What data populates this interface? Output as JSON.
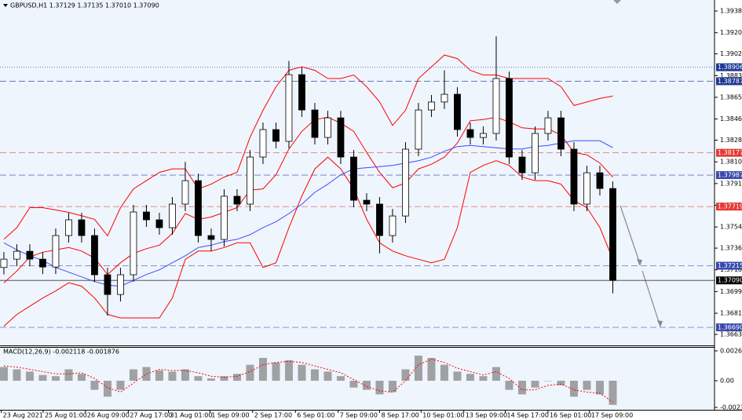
{
  "chart_data": [
    {
      "type": "candlestick",
      "title": "GBPUSD,H1  1.37129 1.37135 1.37010 1.37090",
      "xlim": [
        -0.3,
        54.85
      ],
      "ylim": [
        1.36536,
        1.39479
      ],
      "xticks": [
        {
          "value": -0.2,
          "label": "23 Aug 2021"
        },
        {
          "value": 3.03,
          "label": "25 Aug 01:00"
        },
        {
          "value": 6.3,
          "label": "26 Aug 09:00"
        },
        {
          "value": 9.6,
          "label": "27 Aug 17:00"
        },
        {
          "value": 12.7,
          "label": "31 Aug 01:00"
        },
        {
          "value": 15.9,
          "label": "1 Sep 09:00"
        },
        {
          "value": 19.2,
          "label": "2 Sep 17:00"
        },
        {
          "value": 22.5,
          "label": "6 Sep 01:00"
        },
        {
          "value": 25.8,
          "label": "7 Sep 09:00"
        },
        {
          "value": 29.0,
          "label": "8 Sep 17:00"
        },
        {
          "value": 32.2,
          "label": "10 Sep 01:00"
        },
        {
          "value": 35.5,
          "label": "13 Sep 09:00"
        },
        {
          "value": 38.7,
          "label": "14 Sep 17:00"
        },
        {
          "value": 42.0,
          "label": "16 Sep 01:00"
        },
        {
          "value": 45.2,
          "label": "17 Sep 09:00"
        }
      ],
      "yticks": [
        {
          "value": 1.39385,
          "label": "1.39385"
        },
        {
          "value": 1.392,
          "label": "1.39200"
        },
        {
          "value": 1.3902,
          "label": "1.39020"
        },
        {
          "value": 1.38835,
          "label": "1.38835"
        },
        {
          "value": 1.3865,
          "label": "1.38650"
        },
        {
          "value": 1.38465,
          "label": "1.38465"
        },
        {
          "value": 1.38285,
          "label": "1.38285"
        },
        {
          "value": 1.381,
          "label": "1.38100"
        },
        {
          "value": 1.37915,
          "label": "1.37915"
        },
        {
          "value": 1.3773,
          "label": "1.37730"
        },
        {
          "value": 1.37545,
          "label": "1.37545"
        },
        {
          "value": 1.37365,
          "label": "1.37365"
        },
        {
          "value": 1.3718,
          "label": "1.37180"
        },
        {
          "value": 1.36995,
          "label": "1.36995"
        },
        {
          "value": 1.3681,
          "label": "1.36810"
        },
        {
          "value": 1.3663,
          "label": "1.36630"
        }
      ],
      "open": [
        1.372,
        1.37271,
        1.37338,
        1.37271,
        1.37204,
        1.37472,
        1.37606,
        1.37472,
        1.37138,
        1.3697,
        1.37138,
        1.37673,
        1.37606,
        1.37539,
        1.3774,
        1.3794,
        1.37472,
        1.37439,
        1.37807,
        1.3774,
        1.38141,
        1.38375,
        1.38275,
        1.38843,
        1.38542,
        1.38308,
        1.38475,
        1.38141,
        1.37773,
        1.3774,
        1.37472,
        1.37639,
        1.38208,
        1.38542,
        1.3861,
        1.38676,
        1.38375,
        1.38308,
        1.38342,
        1.3881,
        1.38141,
        1.38007,
        1.38342,
        1.38475,
        1.38208,
        1.3774,
        1.38007,
        1.37873
      ],
      "high": [
        1.37331,
        1.37398,
        1.37398,
        1.37331,
        1.37532,
        1.37666,
        1.37666,
        1.37532,
        1.37198,
        1.37198,
        1.37733,
        1.37733,
        1.37666,
        1.378,
        1.381,
        1.38,
        1.37532,
        1.37867,
        1.37867,
        1.38201,
        1.38435,
        1.38435,
        1.3896,
        1.38903,
        1.38602,
        1.38535,
        1.38535,
        1.38201,
        1.37833,
        1.378,
        1.37699,
        1.38268,
        1.38602,
        1.3867,
        1.3888,
        1.38736,
        1.38435,
        1.38402,
        1.3917,
        1.3887,
        1.38201,
        1.38402,
        1.38535,
        1.38535,
        1.38268,
        1.38067,
        1.38067,
        1.37933
      ],
      "low": [
        1.3714,
        1.37211,
        1.37211,
        1.37144,
        1.37144,
        1.37412,
        1.37412,
        1.37078,
        1.3679,
        1.3691,
        1.37078,
        1.37546,
        1.37479,
        1.37479,
        1.3768,
        1.37412,
        1.3734,
        1.37379,
        1.3768,
        1.3768,
        1.38081,
        1.38215,
        1.38215,
        1.38482,
        1.38248,
        1.38248,
        1.38081,
        1.37713,
        1.3768,
        1.3732,
        1.37412,
        1.37579,
        1.38148,
        1.38482,
        1.3855,
        1.38315,
        1.38248,
        1.38248,
        1.38282,
        1.38081,
        1.37947,
        1.37947,
        1.38282,
        1.38148,
        1.3768,
        1.3768,
        1.37813,
        1.3698
      ],
      "close": [
        1.37271,
        1.37338,
        1.37271,
        1.37204,
        1.37472,
        1.37606,
        1.37472,
        1.37138,
        1.3697,
        1.37138,
        1.37673,
        1.37606,
        1.37539,
        1.3774,
        1.3794,
        1.37472,
        1.37439,
        1.37807,
        1.3774,
        1.38141,
        1.38375,
        1.38275,
        1.38843,
        1.38542,
        1.38308,
        1.38475,
        1.38141,
        1.37773,
        1.3774,
        1.37472,
        1.37639,
        1.38208,
        1.38542,
        1.3861,
        1.38676,
        1.38375,
        1.38308,
        1.38342,
        1.3881,
        1.38141,
        1.38007,
        1.38342,
        1.38475,
        1.38208,
        1.3774,
        1.38007,
        1.37873,
        1.3709
      ],
      "series": [
        {
          "color": "#ff0000",
          "values": [
            1.3744,
            1.3754,
            1.3771,
            1.3771,
            1.3769,
            1.3767,
            1.3764,
            1.3761,
            1.3747,
            1.3771,
            1.3787,
            1.3794,
            1.3801,
            1.3804,
            1.3804,
            1.3787,
            1.3791,
            1.3797,
            1.3801,
            1.3831,
            1.3854,
            1.3874,
            1.3888,
            1.3891,
            1.3888,
            1.3881,
            1.3881,
            1.3884,
            1.3874,
            1.3861,
            1.3841,
            1.3854,
            1.3881,
            1.3891,
            1.3901,
            1.3898,
            1.3888,
            1.3884,
            1.3884,
            1.3881,
            1.3881,
            1.3881,
            1.3881,
            1.3874,
            1.3858,
            1.3861,
            1.3864,
            1.3866
          ]
        },
        {
          "color": "#ff0000",
          "values": [
            1.3707,
            1.3717,
            1.3729,
            1.3733,
            1.3735,
            1.3737,
            1.3734,
            1.3728,
            1.3714,
            1.3724,
            1.3732,
            1.3736,
            1.3739,
            1.3749,
            1.3766,
            1.3761,
            1.3763,
            1.3767,
            1.3771,
            1.3786,
            1.3787,
            1.3799,
            1.3821,
            1.3836,
            1.3846,
            1.3848,
            1.3843,
            1.3836,
            1.3818,
            1.3801,
            1.3788,
            1.3792,
            1.3804,
            1.3808,
            1.3814,
            1.3826,
            1.3845,
            1.3846,
            1.3848,
            1.3844,
            1.3839,
            1.3838,
            1.3838,
            1.3833,
            1.3818,
            1.3816,
            1.3809,
            1.3797
          ]
        },
        {
          "color": "#ff0000",
          "values": [
            1.367,
            1.368,
            1.3687,
            1.3694,
            1.37,
            1.3707,
            1.3704,
            1.3694,
            1.368,
            1.3677,
            1.3677,
            1.3677,
            1.3677,
            1.3694,
            1.3727,
            1.3734,
            1.3734,
            1.3737,
            1.3741,
            1.3741,
            1.372,
            1.3724,
            1.3754,
            1.3781,
            1.3804,
            1.3814,
            1.3804,
            1.3787,
            1.3761,
            1.3741,
            1.3734,
            1.373,
            1.3727,
            1.3724,
            1.3727,
            1.3754,
            1.3801,
            1.3807,
            1.3811,
            1.3807,
            1.3797,
            1.3794,
            1.3794,
            1.3791,
            1.3777,
            1.3771,
            1.3754,
            1.3727
          ]
        },
        {
          "color": "#3b4cff",
          "values": [
            1.3741,
            1.3735,
            1.373,
            1.3726,
            1.372,
            1.3716,
            1.3712,
            1.3708,
            1.3705,
            1.3704,
            1.3709,
            1.3714,
            1.3718,
            1.3724,
            1.373,
            1.3737,
            1.3739,
            1.3742,
            1.3744,
            1.3748,
            1.3754,
            1.3759,
            1.3766,
            1.3774,
            1.3784,
            1.3791,
            1.3799,
            1.3804,
            1.3805,
            1.3806,
            1.3807,
            1.3809,
            1.3811,
            1.3814,
            1.3819,
            1.3823,
            1.3824,
            1.3823,
            1.3822,
            1.3821,
            1.3821,
            1.3823,
            1.3824,
            1.3826,
            1.3828,
            1.3828,
            1.3828,
            1.3822
          ]
        }
      ],
      "levels": [
        {
          "value": 1.38906,
          "label": "1.38906",
          "color": "#1f3a93",
          "dash": "1 2"
        },
        {
          "value": 1.38787,
          "label": "1.38787",
          "color": "#1f3a93",
          "dash": "8 4"
        },
        {
          "value": 1.38177,
          "label": "1.38177",
          "color": "#e53935",
          "dash": "8 4"
        },
        {
          "value": 1.37987,
          "label": "1.37987",
          "color": "#3949ab",
          "dash": "8 4"
        },
        {
          "value": 1.37719,
          "label": "1.37719",
          "color": "#e53935",
          "dash": "8 4"
        },
        {
          "value": 1.37215,
          "label": "1.37215",
          "color": "#3949ab",
          "dash": "8 4"
        },
        {
          "value": 1.3669,
          "label": "1.36690",
          "color": "#3949ab",
          "dash": "8 4"
        },
        {
          "value": 1.3709,
          "label": "1.37090",
          "color": "#000000",
          "dash": "none"
        }
      ]
    },
    {
      "type": "macd",
      "title": "MACD(12,26,9) -0.002118 -0.001876",
      "ylim": [
        -0.00255,
        0.00296
      ],
      "yticks": [
        0.002619,
        {
          "value": 0,
          "label": "0.00"
        },
        -0.002344
      ],
      "color": "#8c8c8c",
      "values": [
        0.0012,
        0.001,
        0.0008,
        0.0005,
        0.0004,
        0.001,
        0.0006,
        -0.0008,
        -0.0014,
        -0.0008,
        0.001,
        0.0012,
        0.0009,
        0.0008,
        0.001,
        0.0004,
        0.0002,
        0.0004,
        0.0006,
        0.0014,
        0.002,
        0.0016,
        0.0018,
        0.0014,
        0.001,
        0.0008,
        0.0004,
        -0.0006,
        -0.0008,
        -0.0012,
        -0.001,
        0.001,
        0.0022,
        0.002,
        0.0014,
        0.0008,
        0.0006,
        0.0004,
        0.0012,
        -0.0008,
        -0.0012,
        -0.0006,
        0.0,
        -0.0004,
        -0.0014,
        -0.0008,
        -0.0012,
        -0.002118
      ],
      "series": [
        {
          "color": "#ff0000",
          "values": [
            0.0013,
            0.0012,
            0.001,
            0.0008,
            0.0006,
            0.0006,
            0.0007,
            0.0002,
            -0.0006,
            -0.001,
            -0.0002,
            0.0006,
            0.001,
            0.0009,
            0.0009,
            0.0007,
            0.0004,
            0.0003,
            0.0004,
            0.0008,
            0.0014,
            0.0016,
            0.0017,
            0.0016,
            0.0013,
            0.001,
            0.0007,
            0.0001,
            -0.0005,
            -0.0009,
            -0.001,
            0.0,
            0.0014,
            0.0019,
            0.0016,
            0.0011,
            0.0008,
            0.0005,
            0.0008,
            0.0002,
            -0.0008,
            -0.0008,
            -0.0004,
            -0.0003,
            -0.0008,
            -0.001,
            -0.0011,
            -0.001876
          ]
        }
      ]
    }
  ]
}
